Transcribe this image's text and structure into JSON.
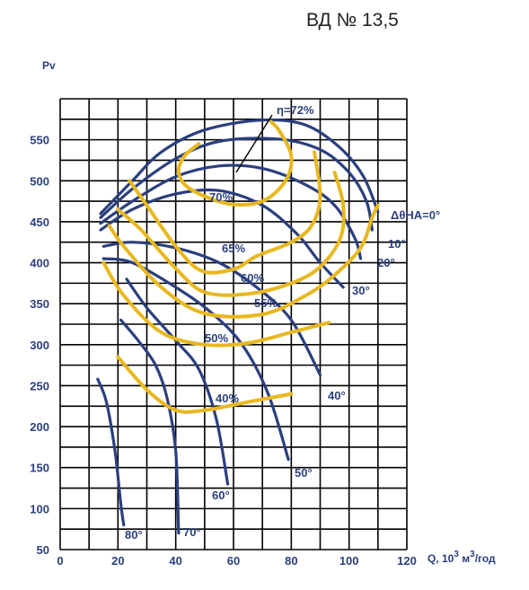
{
  "chart_data": {
    "type": "line",
    "title": "ВД № 13,5",
    "ylabel": "Pv",
    "xlabel": "Q, 10³ м³/год",
    "xlabel_parts": {
      "prefix": "Q, 10",
      "sup1": "3",
      "mid": " м",
      "sup2": "3",
      "suffix": "/год"
    },
    "xlim": [
      0,
      120
    ],
    "ylim": [
      50,
      600
    ],
    "x_ticks": [
      "0",
      "20",
      "40",
      "60",
      "80",
      "100",
      "120"
    ],
    "y_ticks": [
      "50",
      "100",
      "150",
      "200",
      "250",
      "300",
      "350",
      "400",
      "450",
      "500",
      "550"
    ],
    "grid": true,
    "colors": {
      "angle_curves": "#2b3f7e",
      "efficiency_curves": "#e8b820",
      "grid": "#000000"
    },
    "angle_series": [
      {
        "name": "ΔθНА=0°",
        "points": [
          [
            14,
            460
          ],
          [
            25,
            500
          ],
          [
            35,
            535
          ],
          [
            50,
            562
          ],
          [
            70,
            574
          ],
          [
            85,
            568
          ],
          [
            97,
            540
          ],
          [
            105,
            505
          ],
          [
            110,
            462
          ]
        ]
      },
      {
        "name": "10°",
        "points": [
          [
            14,
            455
          ],
          [
            25,
            490
          ],
          [
            40,
            527
          ],
          [
            55,
            548
          ],
          [
            75,
            551
          ],
          [
            90,
            538
          ],
          [
            100,
            510
          ],
          [
            106,
            475
          ],
          [
            108,
            440
          ]
        ]
      },
      {
        "name": "20°",
        "points": [
          [
            14,
            448
          ],
          [
            25,
            475
          ],
          [
            40,
            505
          ],
          [
            55,
            518
          ],
          [
            70,
            515
          ],
          [
            85,
            495
          ],
          [
            95,
            470
          ],
          [
            102,
            430
          ],
          [
            104,
            405
          ]
        ]
      },
      {
        "name": "30°",
        "points": [
          [
            14,
            440
          ],
          [
            25,
            465
          ],
          [
            40,
            484
          ],
          [
            55,
            488
          ],
          [
            70,
            470
          ],
          [
            82,
            435
          ],
          [
            90,
            400
          ],
          [
            98,
            370
          ]
        ]
      },
      {
        "name": "40°",
        "points": [
          [
            15,
            420
          ],
          [
            25,
            425
          ],
          [
            40,
            418
          ],
          [
            55,
            400
          ],
          [
            68,
            370
          ],
          [
            80,
            330
          ],
          [
            90,
            263
          ]
        ]
      },
      {
        "name": "50°",
        "points": [
          [
            15,
            405
          ],
          [
            25,
            400
          ],
          [
            40,
            370
          ],
          [
            52,
            340
          ],
          [
            63,
            300
          ],
          [
            72,
            240
          ],
          [
            79,
            160
          ]
        ]
      },
      {
        "name": "60°",
        "points": [
          [
            23,
            380
          ],
          [
            30,
            345
          ],
          [
            40,
            305
          ],
          [
            48,
            270
          ],
          [
            54,
            210
          ],
          [
            58,
            130
          ]
        ]
      },
      {
        "name": "70°",
        "points": [
          [
            21,
            330
          ],
          [
            27,
            305
          ],
          [
            33,
            275
          ],
          [
            37,
            235
          ],
          [
            40,
            170
          ],
          [
            41,
            70
          ]
        ]
      },
      {
        "name": "80°",
        "points": [
          [
            13,
            258
          ],
          [
            16,
            230
          ],
          [
            19,
            170
          ],
          [
            21,
            105
          ],
          [
            22,
            80
          ]
        ]
      }
    ],
    "efficiency_series": [
      {
        "name": "η=72%",
        "points": [
          [
            48,
            545
          ],
          [
            43,
            530
          ],
          [
            41,
            510
          ],
          [
            45,
            490
          ],
          [
            58,
            472
          ],
          [
            70,
            475
          ],
          [
            78,
            500
          ],
          [
            80,
            530
          ],
          [
            76,
            560
          ],
          [
            73,
            572
          ]
        ]
      },
      {
        "name": "70%",
        "points": [
          [
            24,
            500
          ],
          [
            30,
            470
          ],
          [
            40,
            420
          ],
          [
            49,
            390
          ],
          [
            60,
            392
          ],
          [
            68,
            408
          ],
          [
            80,
            425
          ],
          [
            87,
            445
          ],
          [
            90,
            480
          ],
          [
            88,
            535
          ]
        ]
      },
      {
        "name": "65%",
        "points": [
          [
            20,
            465
          ],
          [
            28,
            440
          ],
          [
            40,
            393
          ],
          [
            50,
            364
          ],
          [
            65,
            362
          ],
          [
            80,
            375
          ],
          [
            90,
            395
          ],
          [
            97,
            430
          ],
          [
            98,
            470
          ],
          [
            95,
            510
          ]
        ]
      },
      {
        "name": "60%",
        "points": [
          [
            17,
            445
          ],
          [
            22,
            420
          ],
          [
            35,
            370
          ],
          [
            50,
            338
          ],
          [
            70,
            337
          ],
          [
            85,
            360
          ],
          [
            95,
            385
          ],
          [
            104,
            418
          ],
          [
            108,
            455
          ],
          [
            110,
            470
          ]
        ]
      },
      {
        "name": "55%",
        "points": [
          [
            15,
            400
          ],
          [
            22,
            360
          ],
          [
            35,
            315
          ],
          [
            50,
            300
          ],
          [
            65,
            302
          ],
          [
            80,
            315
          ],
          [
            93,
            327
          ]
        ]
      },
      {
        "name": "50%",
        "points": [
          [
            20,
            285
          ],
          [
            30,
            245
          ],
          [
            40,
            220
          ],
          [
            50,
            220
          ],
          [
            65,
            230
          ],
          [
            80,
            240
          ]
        ]
      }
    ],
    "curve_labels": {
      "eta": "η=72%",
      "e70": "70%",
      "e65": "65%",
      "e60": "60%",
      "e55": "55%",
      "e50": "50%",
      "e40": "40%",
      "a0": "ΔθНА=0°",
      "a10": "10°",
      "a20": "20°",
      "a30": "30°",
      "a40": "40°",
      "a50": "50°",
      "a60": "60°",
      "a70": "70°",
      "a80": "80°"
    }
  }
}
